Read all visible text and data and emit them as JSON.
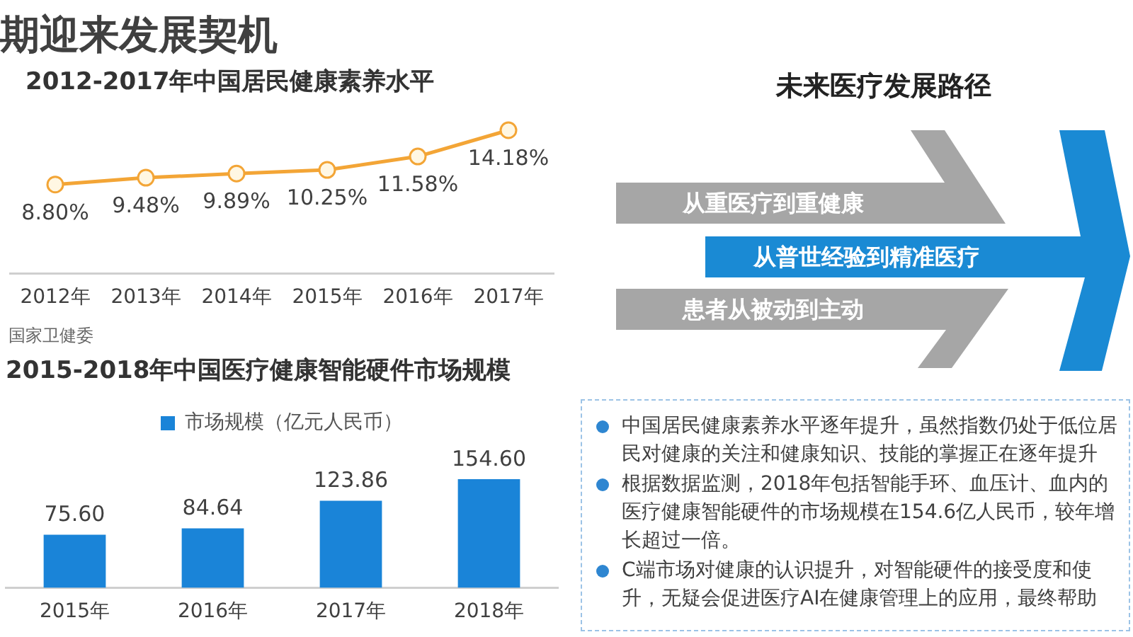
{
  "chart_data": [
    {
      "type": "other",
      "title": "期迎来发展契机"
    },
    {
      "type": "line",
      "title": "2012-2017年中国居民健康素养水平",
      "categories": [
        "2012年",
        "2013年",
        "2014年",
        "2015年",
        "2016年",
        "2017年"
      ],
      "values": [
        8.8,
        9.48,
        9.89,
        10.25,
        11.58,
        14.18
      ],
      "value_labels": [
        "8.80%",
        "9.48%",
        "9.89%",
        "10.25%",
        "11.58%",
        "14.18%"
      ],
      "color": "#f3a536",
      "marker": "circle",
      "tick_labels": "x",
      "annotations": [
        "国家卫健委"
      ]
    },
    {
      "type": "bar",
      "title": "2015-2018年中国医疗健康智能硬件市场规模",
      "categories": [
        "2015年",
        "2016年",
        "2017年",
        "2018年"
      ],
      "series": [
        {
          "name": "市场规模（亿元人民币）",
          "color": "#1a84d8",
          "values": [
            75.6,
            84.64,
            123.86,
            154.6
          ],
          "value_labels": [
            "75.60",
            "84.64",
            "123.86",
            "154.60"
          ]
        }
      ],
      "legend": "top",
      "tick_labels": "x"
    },
    {
      "type": "other",
      "title": "未来医疗发展路径",
      "categories": [
        "从重医疗到重健康",
        "从普世经验到精准医疗",
        "患者从被动到主动"
      ],
      "colors": [
        "#a6a6a6",
        "#1a8ad4",
        "#a6a6a6"
      ]
    },
    {
      "type": "other",
      "annotations": [
        "中国居民健康素养水平逐年提升，虽然指数仍处于低位居民对健康的关注和健康知识、技能的掌握正在逐年提升",
        "根据数据监测，2018年包括智能手环、血压计、血内的医疗健康智能硬件的市场规模在154.6亿人民币，较年增长超过一倍。",
        "C端市场对健康的认识提升，对智能硬件的接受度和使升，无疑会促进医疗AI在健康管理上的应用，最终帮助"
      ]
    }
  ]
}
